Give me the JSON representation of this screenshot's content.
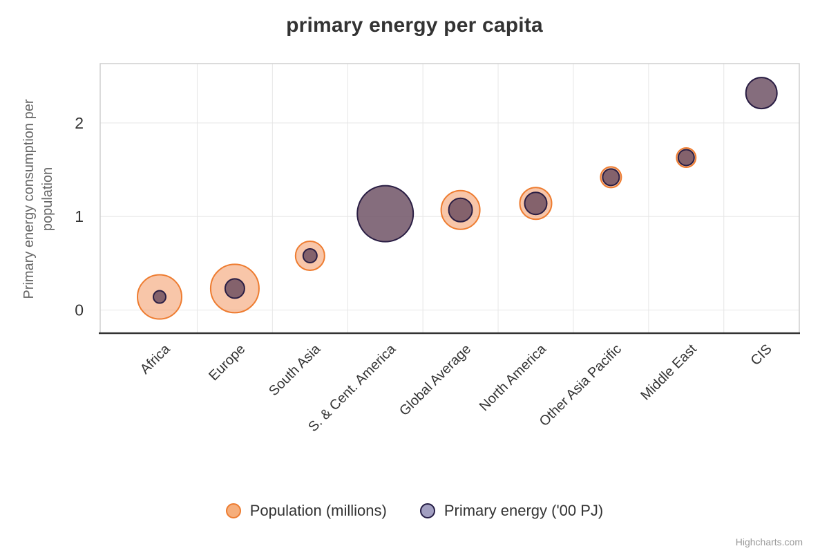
{
  "chart": {
    "title": "primary energy per capita",
    "credit": "Highcharts.com"
  },
  "y_axis_title": {
    "line1": "Primary energy consumption per",
    "line2": "population"
  },
  "legend": {
    "items": [
      {
        "label": "Population (millions)",
        "marker_fill": "#f6ae7b",
        "marker_stroke": "#ed7c31"
      },
      {
        "label": "Primary energy ('00 PJ)",
        "marker_fill": "#a29fc1",
        "marker_stroke": "#251d45"
      }
    ]
  },
  "chart_data": {
    "type": "bubble",
    "title": "primary energy per capita",
    "xlabel": "",
    "ylabel": "Primary energy consumption per population",
    "categories": [
      "Africa",
      "Europe",
      "South Asia",
      "S. & Cent. America",
      "Global Average",
      "North America",
      "Other Asia Pacific",
      "Middle East",
      "CIS"
    ],
    "y_values": [
      0.14,
      0.23,
      0.58,
      1.03,
      1.07,
      1.14,
      1.42,
      1.63,
      2.32
    ],
    "series": [
      {
        "name": "Population (millions)",
        "fill": "rgba(242,142,84,0.5)",
        "stroke": "#ee7c30",
        "bubble_radius_px": [
          32,
          35,
          21,
          null,
          28,
          23,
          15,
          14,
          null
        ]
      },
      {
        "name": "Primary energy ('00 PJ)",
        "fill": "rgba(103,72,93,0.8)",
        "stroke": "#2a1e44",
        "bubble_radius_px": [
          9,
          14,
          10,
          40.5,
          17,
          16,
          12,
          11.5,
          22.5
        ]
      }
    ],
    "y_axis": {
      "ticks": [
        0,
        1,
        2
      ]
    },
    "ylim": [
      -0.25,
      2.65
    ],
    "grid": true,
    "legend_position": "bottom",
    "colors": {
      "text": "#333333",
      "axis_title": "#666666",
      "gridline": "#e6e6e6",
      "plot_border": "#cfcfcf",
      "axis_line": "#333333",
      "credit": "#999999"
    }
  }
}
